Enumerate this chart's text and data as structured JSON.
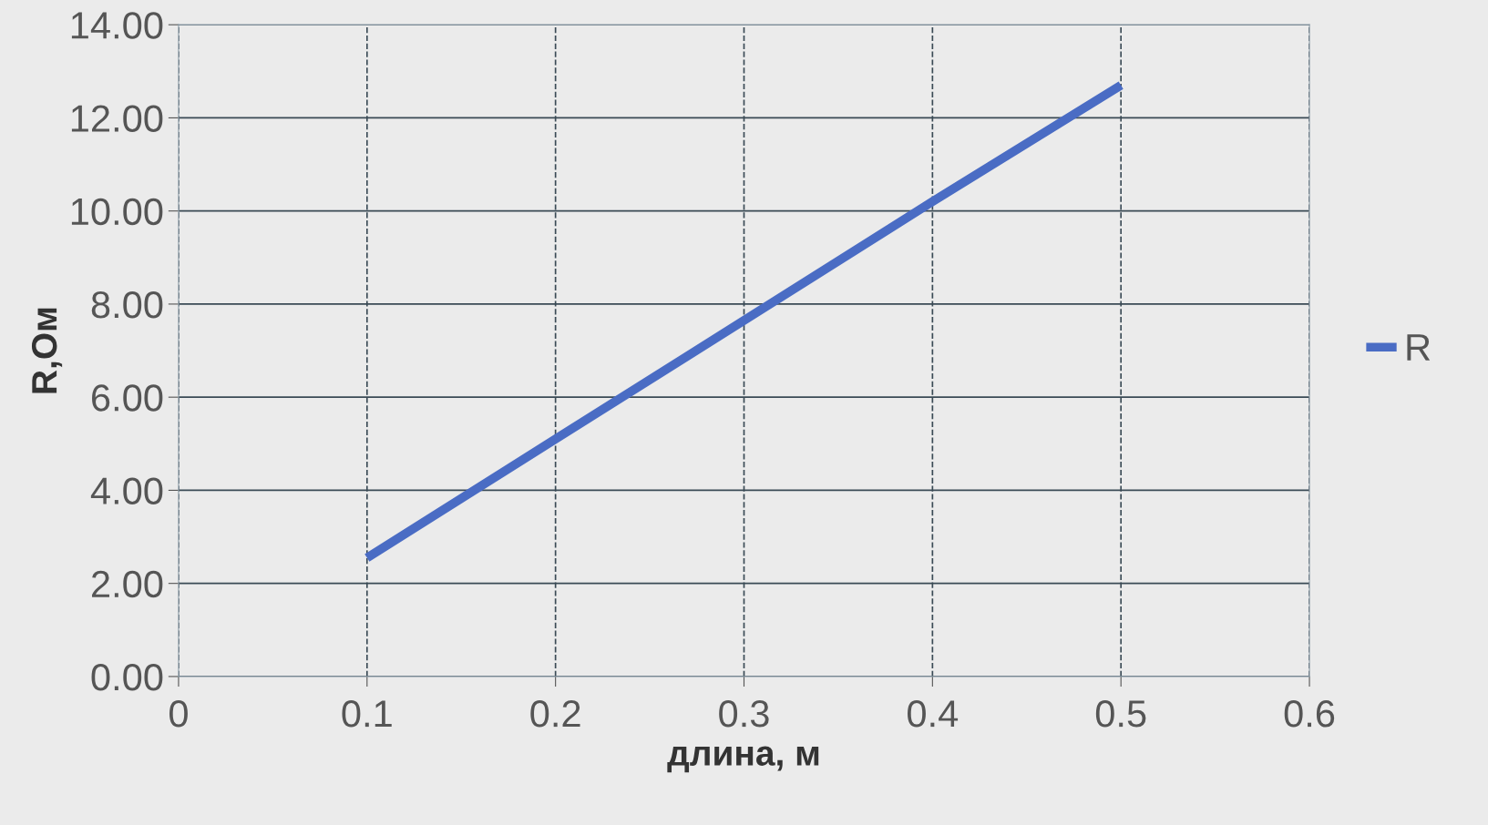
{
  "chart_data": {
    "type": "line",
    "xlabel": "длина, м",
    "ylabel": "R,Ом",
    "x": [
      0.1,
      0.2,
      0.3,
      0.4,
      0.5
    ],
    "series": [
      {
        "name": "R",
        "color": "#4a6cc4",
        "values": [
          2.55,
          5.1,
          7.65,
          10.2,
          12.7
        ]
      }
    ],
    "xlim": [
      0,
      0.6
    ],
    "xticks": [
      0,
      0.1,
      0.2,
      0.3,
      0.4,
      0.5,
      0.6
    ],
    "ylim": [
      0,
      14
    ],
    "yticks": [
      {
        "value": 0,
        "label": "0.00"
      },
      {
        "value": 2,
        "label": "2.00"
      },
      {
        "value": 4,
        "label": "4.00"
      },
      {
        "value": 6,
        "label": "6.00"
      },
      {
        "value": 8,
        "label": "8.00"
      },
      {
        "value": 10,
        "label": "10.00"
      },
      {
        "value": 12,
        "label": "12.00"
      },
      {
        "value": 14,
        "label": "14.00"
      }
    ],
    "grid": true,
    "legend": "right",
    "marker": "none",
    "line_style": "solid"
  }
}
